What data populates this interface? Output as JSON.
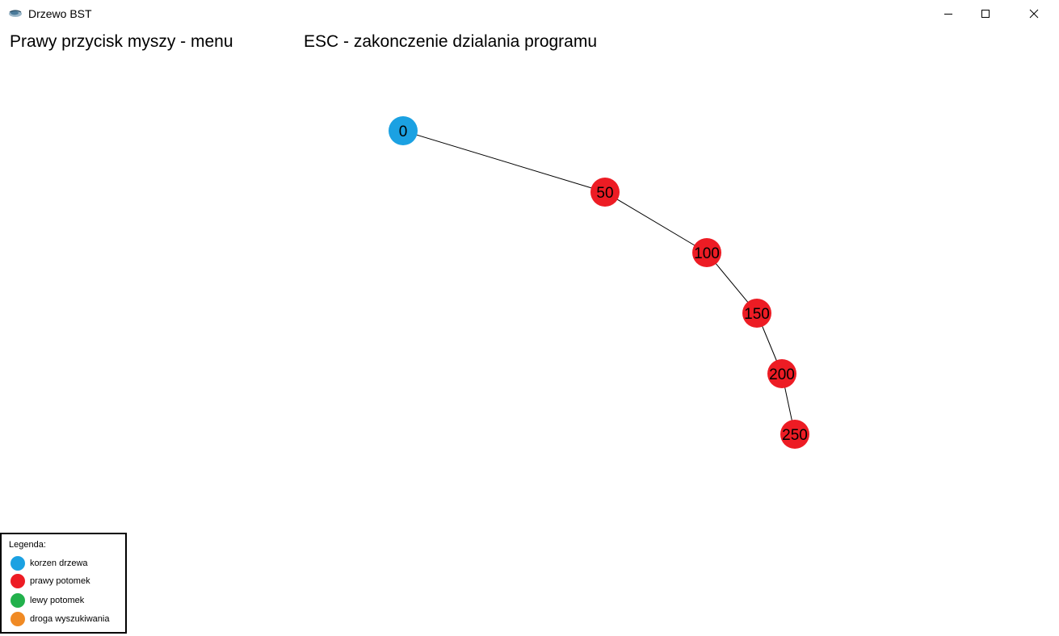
{
  "window": {
    "title": "Drzewo BST",
    "icon": "app-logo-icon",
    "controls": [
      "minimize-icon",
      "maximize-icon",
      "close-icon"
    ]
  },
  "hints": {
    "menu": "Prawy przycisk myszy - menu",
    "esc": "ESC - zakonczenie dzialania programu"
  },
  "tree": {
    "nodes": [
      {
        "label": "0",
        "role": "root"
      },
      {
        "label": "50",
        "role": "right"
      },
      {
        "label": "100",
        "role": "right"
      },
      {
        "label": "150",
        "role": "right"
      },
      {
        "label": "200",
        "role": "right"
      },
      {
        "label": "250",
        "role": "right"
      }
    ],
    "edges": [
      [
        0,
        1
      ],
      [
        1,
        2
      ],
      [
        2,
        3
      ],
      [
        3,
        4
      ],
      [
        4,
        5
      ]
    ]
  },
  "legend": {
    "title": "Legenda:",
    "items": [
      {
        "label": "korzen drzewa",
        "color": "#1ba1e2",
        "role": "root"
      },
      {
        "label": "prawy potomek",
        "color": "#ed1c24",
        "role": "right"
      },
      {
        "label": "lewy potomek",
        "color": "#22b14c",
        "role": "left"
      },
      {
        "label": "droga wyszukiwania",
        "color": "#f08a24",
        "role": "search"
      }
    ]
  },
  "colors": {
    "root": "#1ba1e2",
    "right": "#ed1c24",
    "left": "#22b14c",
    "search": "#f08a24"
  }
}
